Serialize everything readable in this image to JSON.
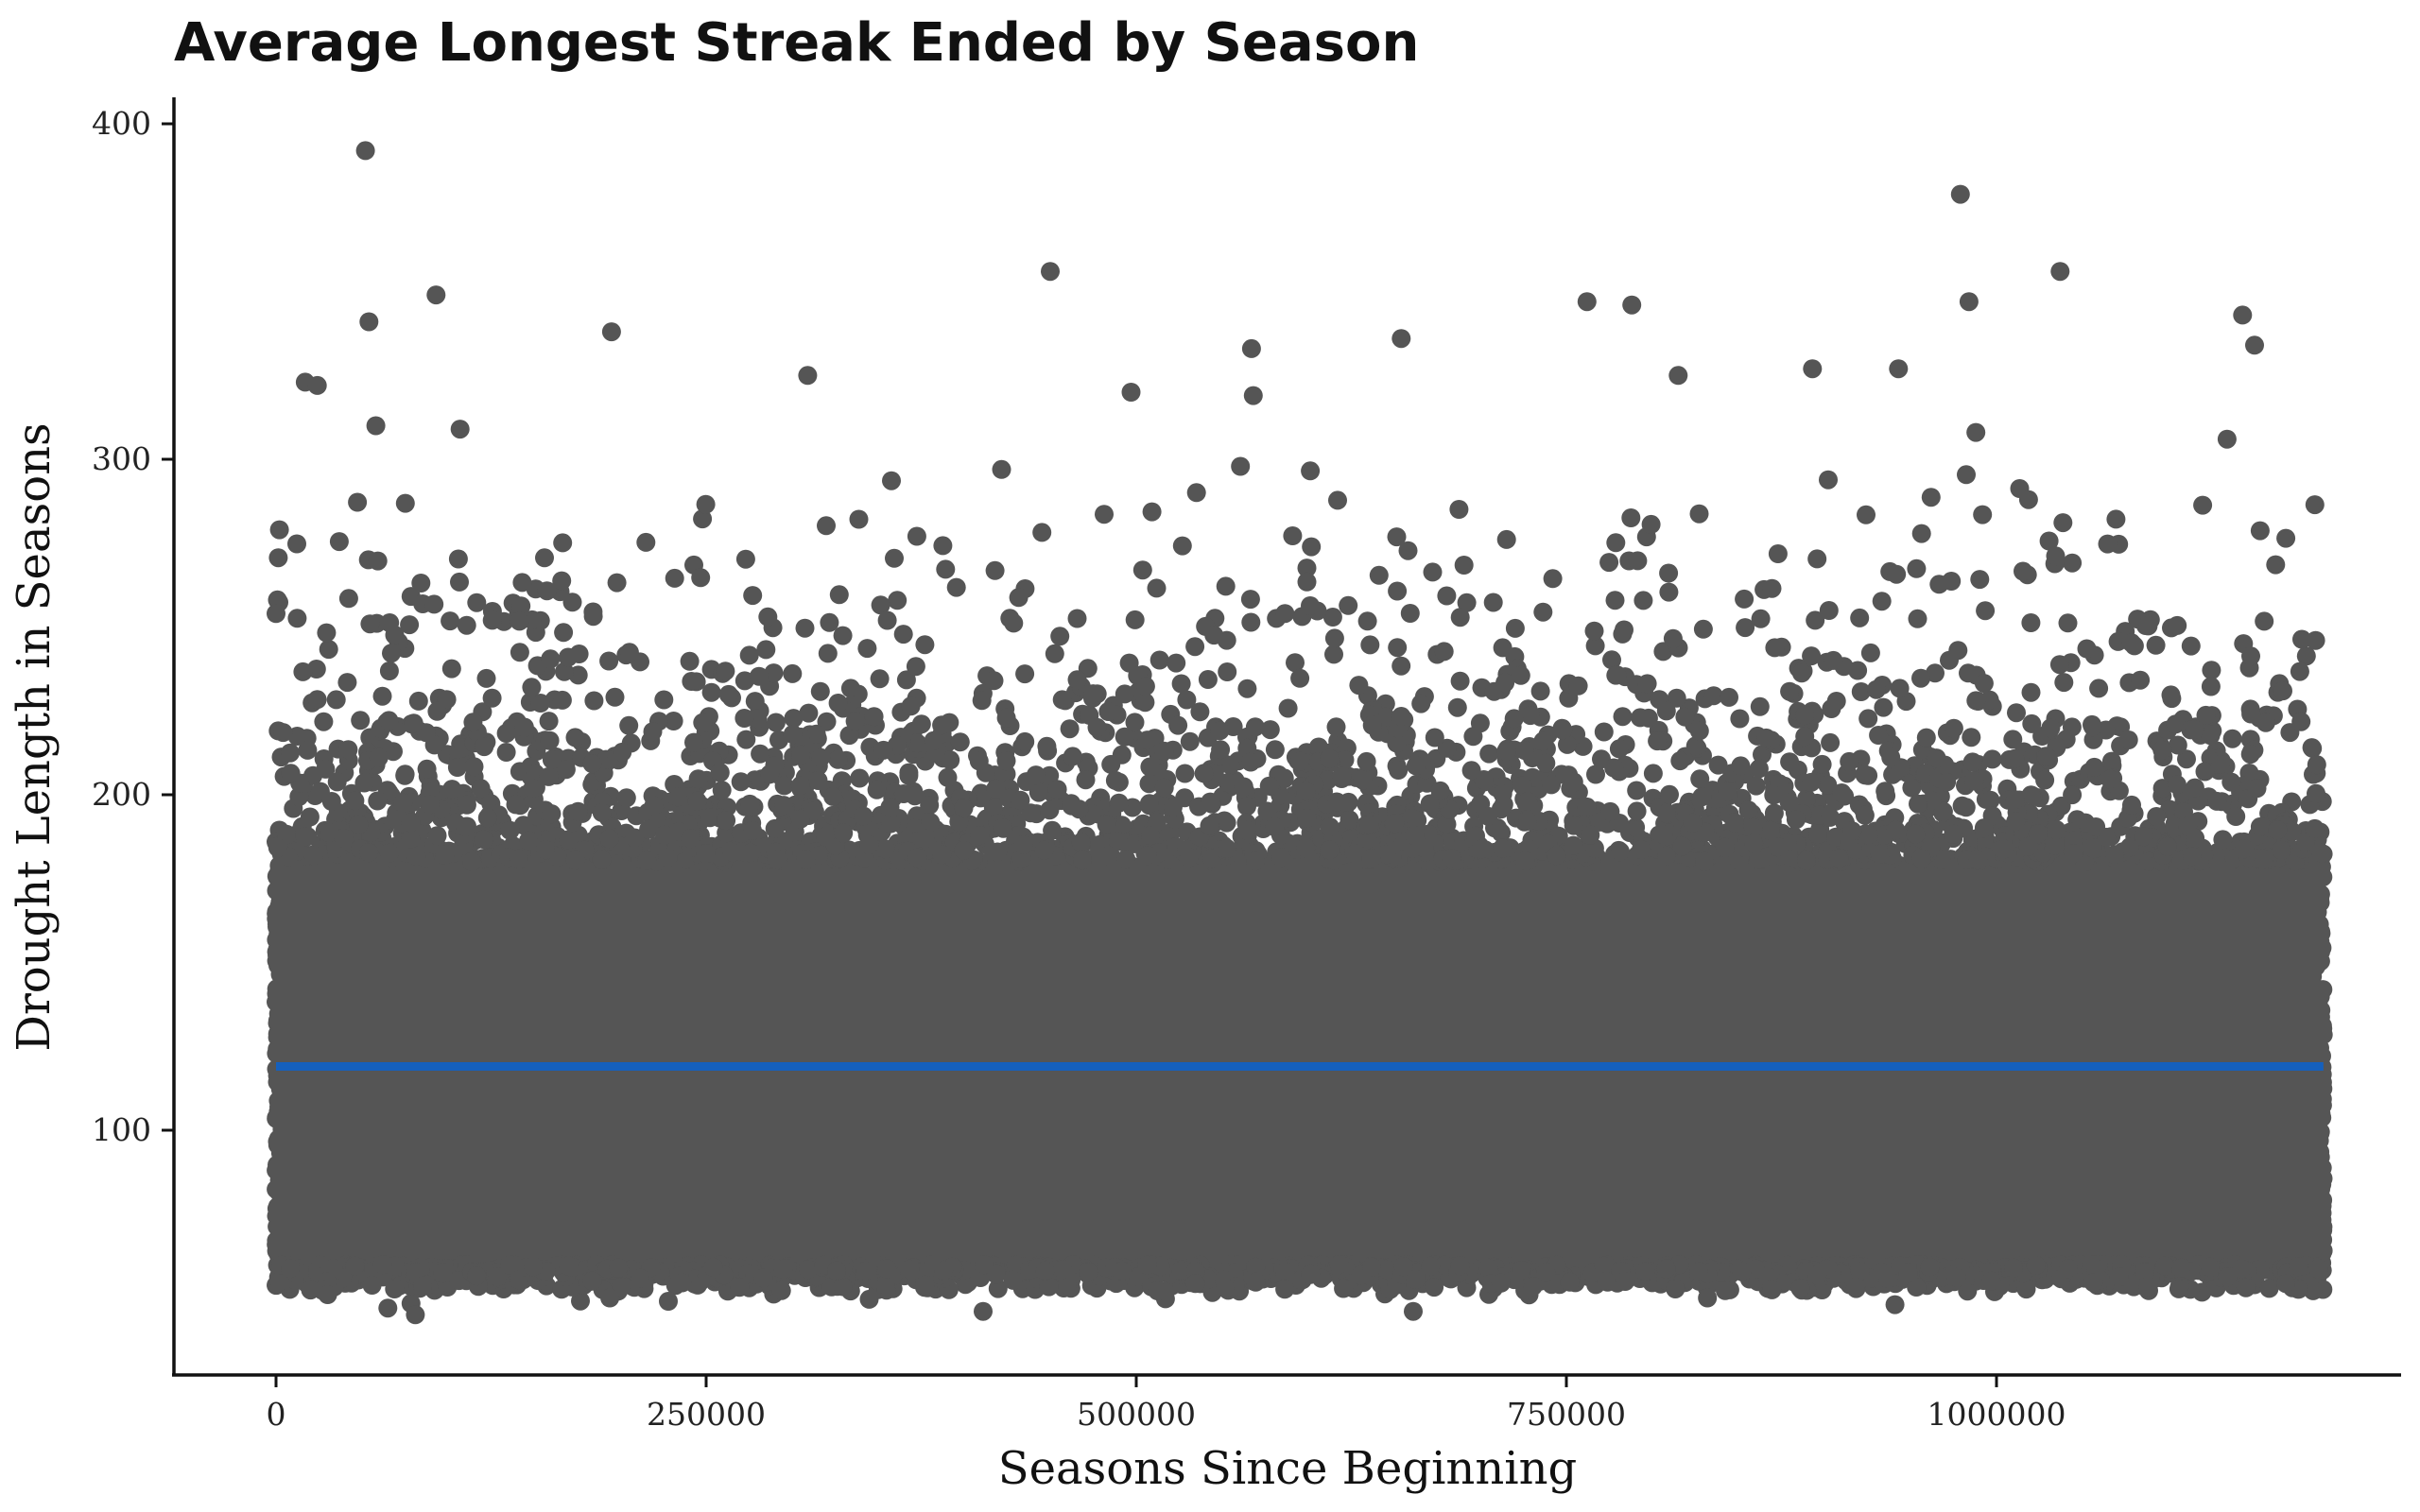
{
  "chart_data": {
    "type": "scatter",
    "title": "Average Longest Streak Ended by Season",
    "xlabel": "Seasons Since Beginning",
    "ylabel": "Drought Length in Seasons",
    "xlim": [
      -60000,
      1230000
    ],
    "ylim": [
      30,
      405
    ],
    "x_ticks": [
      0,
      250000,
      500000,
      750000,
      1000000
    ],
    "x_tick_labels": [
      "0",
      "250000",
      "500000",
      "750000",
      "1000000"
    ],
    "y_ticks": [
      100,
      200,
      300,
      400
    ],
    "y_tick_labels": [
      "100",
      "200",
      "300",
      "400"
    ],
    "grid": false,
    "legend": "none",
    "point_color": "#555555",
    "trend_color": "#1560bd",
    "trend_line": {
      "x": [
        0,
        1190000
      ],
      "y": [
        119,
        119
      ]
    },
    "x_range_of_points": [
      0,
      1190000
    ],
    "typical_y_band": [
      60,
      180
    ],
    "notable_points": [
      {
        "x": 52000,
        "y": 392
      },
      {
        "x": 93000,
        "y": 349
      },
      {
        "x": 54000,
        "y": 341
      },
      {
        "x": 17000,
        "y": 323
      },
      {
        "x": 24000,
        "y": 322
      },
      {
        "x": 195000,
        "y": 338
      },
      {
        "x": 450000,
        "y": 356
      },
      {
        "x": 309000,
        "y": 325
      },
      {
        "x": 567000,
        "y": 333
      },
      {
        "x": 568000,
        "y": 319
      },
      {
        "x": 654000,
        "y": 336
      },
      {
        "x": 762000,
        "y": 347
      },
      {
        "x": 788000,
        "y": 346
      },
      {
        "x": 815000,
        "y": 325
      },
      {
        "x": 979000,
        "y": 379
      },
      {
        "x": 984000,
        "y": 347
      },
      {
        "x": 1037000,
        "y": 356
      },
      {
        "x": 1143000,
        "y": 343
      },
      {
        "x": 1150000,
        "y": 334
      },
      {
        "x": 893000,
        "y": 327
      },
      {
        "x": 943000,
        "y": 327
      },
      {
        "x": 497000,
        "y": 320
      },
      {
        "x": 58000,
        "y": 310
      },
      {
        "x": 107000,
        "y": 309
      },
      {
        "x": 988000,
        "y": 308
      },
      {
        "x": 1134000,
        "y": 306
      },
      {
        "x": 2000,
        "y": 279
      },
      {
        "x": 0,
        "y": 254
      },
      {
        "x": 661000,
        "y": 46
      },
      {
        "x": 411000,
        "y": 46
      },
      {
        "x": 81000,
        "y": 45
      },
      {
        "x": 65000,
        "y": 47
      },
      {
        "x": 228000,
        "y": 49
      },
      {
        "x": 194000,
        "y": 50
      },
      {
        "x": 941000,
        "y": 48
      },
      {
        "x": 832000,
        "y": 50
      },
      {
        "x": 30000,
        "y": 51
      },
      {
        "x": 1145000,
        "y": 53
      }
    ]
  }
}
